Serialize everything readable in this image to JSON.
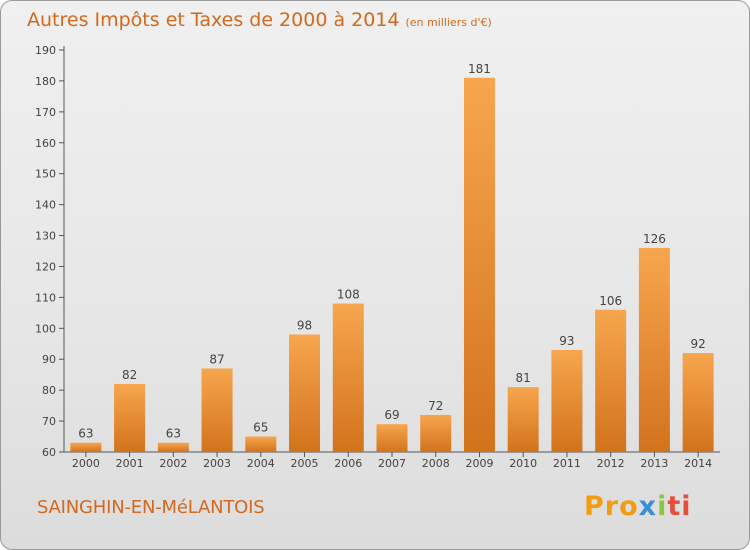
{
  "chart_data": {
    "type": "bar",
    "title": "Autres Impôts et Taxes de 2000 à 2014",
    "unit": "(en milliers d'€)",
    "categories": [
      "2000",
      "2001",
      "2002",
      "2003",
      "2004",
      "2005",
      "2006",
      "2007",
      "2008",
      "2009",
      "2010",
      "2011",
      "2012",
      "2013",
      "2014"
    ],
    "values": [
      63,
      82,
      63,
      87,
      65,
      98,
      108,
      69,
      72,
      181,
      81,
      93,
      106,
      126,
      92
    ],
    "ylim": [
      60,
      190
    ],
    "yticks": [
      60,
      70,
      80,
      90,
      100,
      110,
      120,
      130,
      140,
      150,
      160,
      170,
      180,
      190
    ],
    "grid": false,
    "colors": {
      "bar_top": "#f7a64e",
      "bar_bottom": "#d2731c",
      "accent": "#d2691e"
    }
  },
  "footer": {
    "commune": "SAINGHIN-EN-MéLANTOIS",
    "logo": {
      "part1": "Pro",
      "part2": "x",
      "part3": "i",
      "part4": "ti"
    }
  }
}
